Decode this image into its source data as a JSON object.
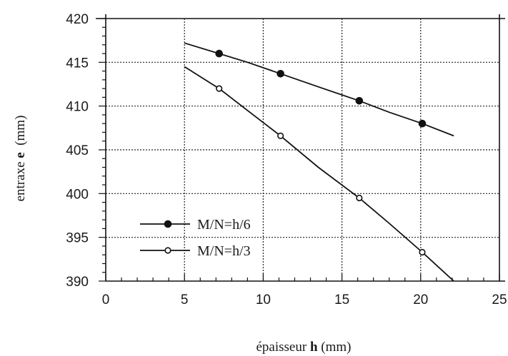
{
  "chart_data": {
    "type": "line",
    "title": "",
    "xlabel": {
      "prefix": "épaisseur ",
      "symbol": "h",
      "suffix": " (mm)"
    },
    "ylabel": {
      "prefix": "entraxe ",
      "symbol": "e",
      "suffix": "  (mm)"
    },
    "xlim": [
      0,
      25
    ],
    "ylim": [
      390,
      420
    ],
    "x_ticks": [
      0,
      5,
      10,
      15,
      20,
      25
    ],
    "y_ticks": [
      390,
      395,
      400,
      405,
      410,
      415,
      420
    ],
    "grid": "dotted",
    "legend_position": "lower-left",
    "series": [
      {
        "name": "M/N=h/6",
        "marker": "filled-circle",
        "x": [
          7.2,
          11.1,
          16.1,
          20.1
        ],
        "y": [
          416.0,
          413.7,
          410.6,
          408.0
        ],
        "curve": {
          "x": [
            5.0,
            7.2,
            9.0,
            11.1,
            13.5,
            16.1,
            18.0,
            20.1,
            22.1
          ],
          "y": [
            417.2,
            416.0,
            415.0,
            413.7,
            412.2,
            410.6,
            409.3,
            408.0,
            406.6
          ]
        }
      },
      {
        "name": "M/N=h/3",
        "marker": "open-circle",
        "x": [
          7.2,
          11.1,
          16.1,
          20.1
        ],
        "y": [
          412.0,
          406.6,
          399.5,
          393.3
        ],
        "curve": {
          "x": [
            5.0,
            7.2,
            9.0,
            11.1,
            13.5,
            16.1,
            18.0,
            20.1,
            22.1
          ],
          "y": [
            414.5,
            412.0,
            409.5,
            406.6,
            403.0,
            399.5,
            396.6,
            393.3,
            390.0
          ]
        }
      }
    ]
  }
}
